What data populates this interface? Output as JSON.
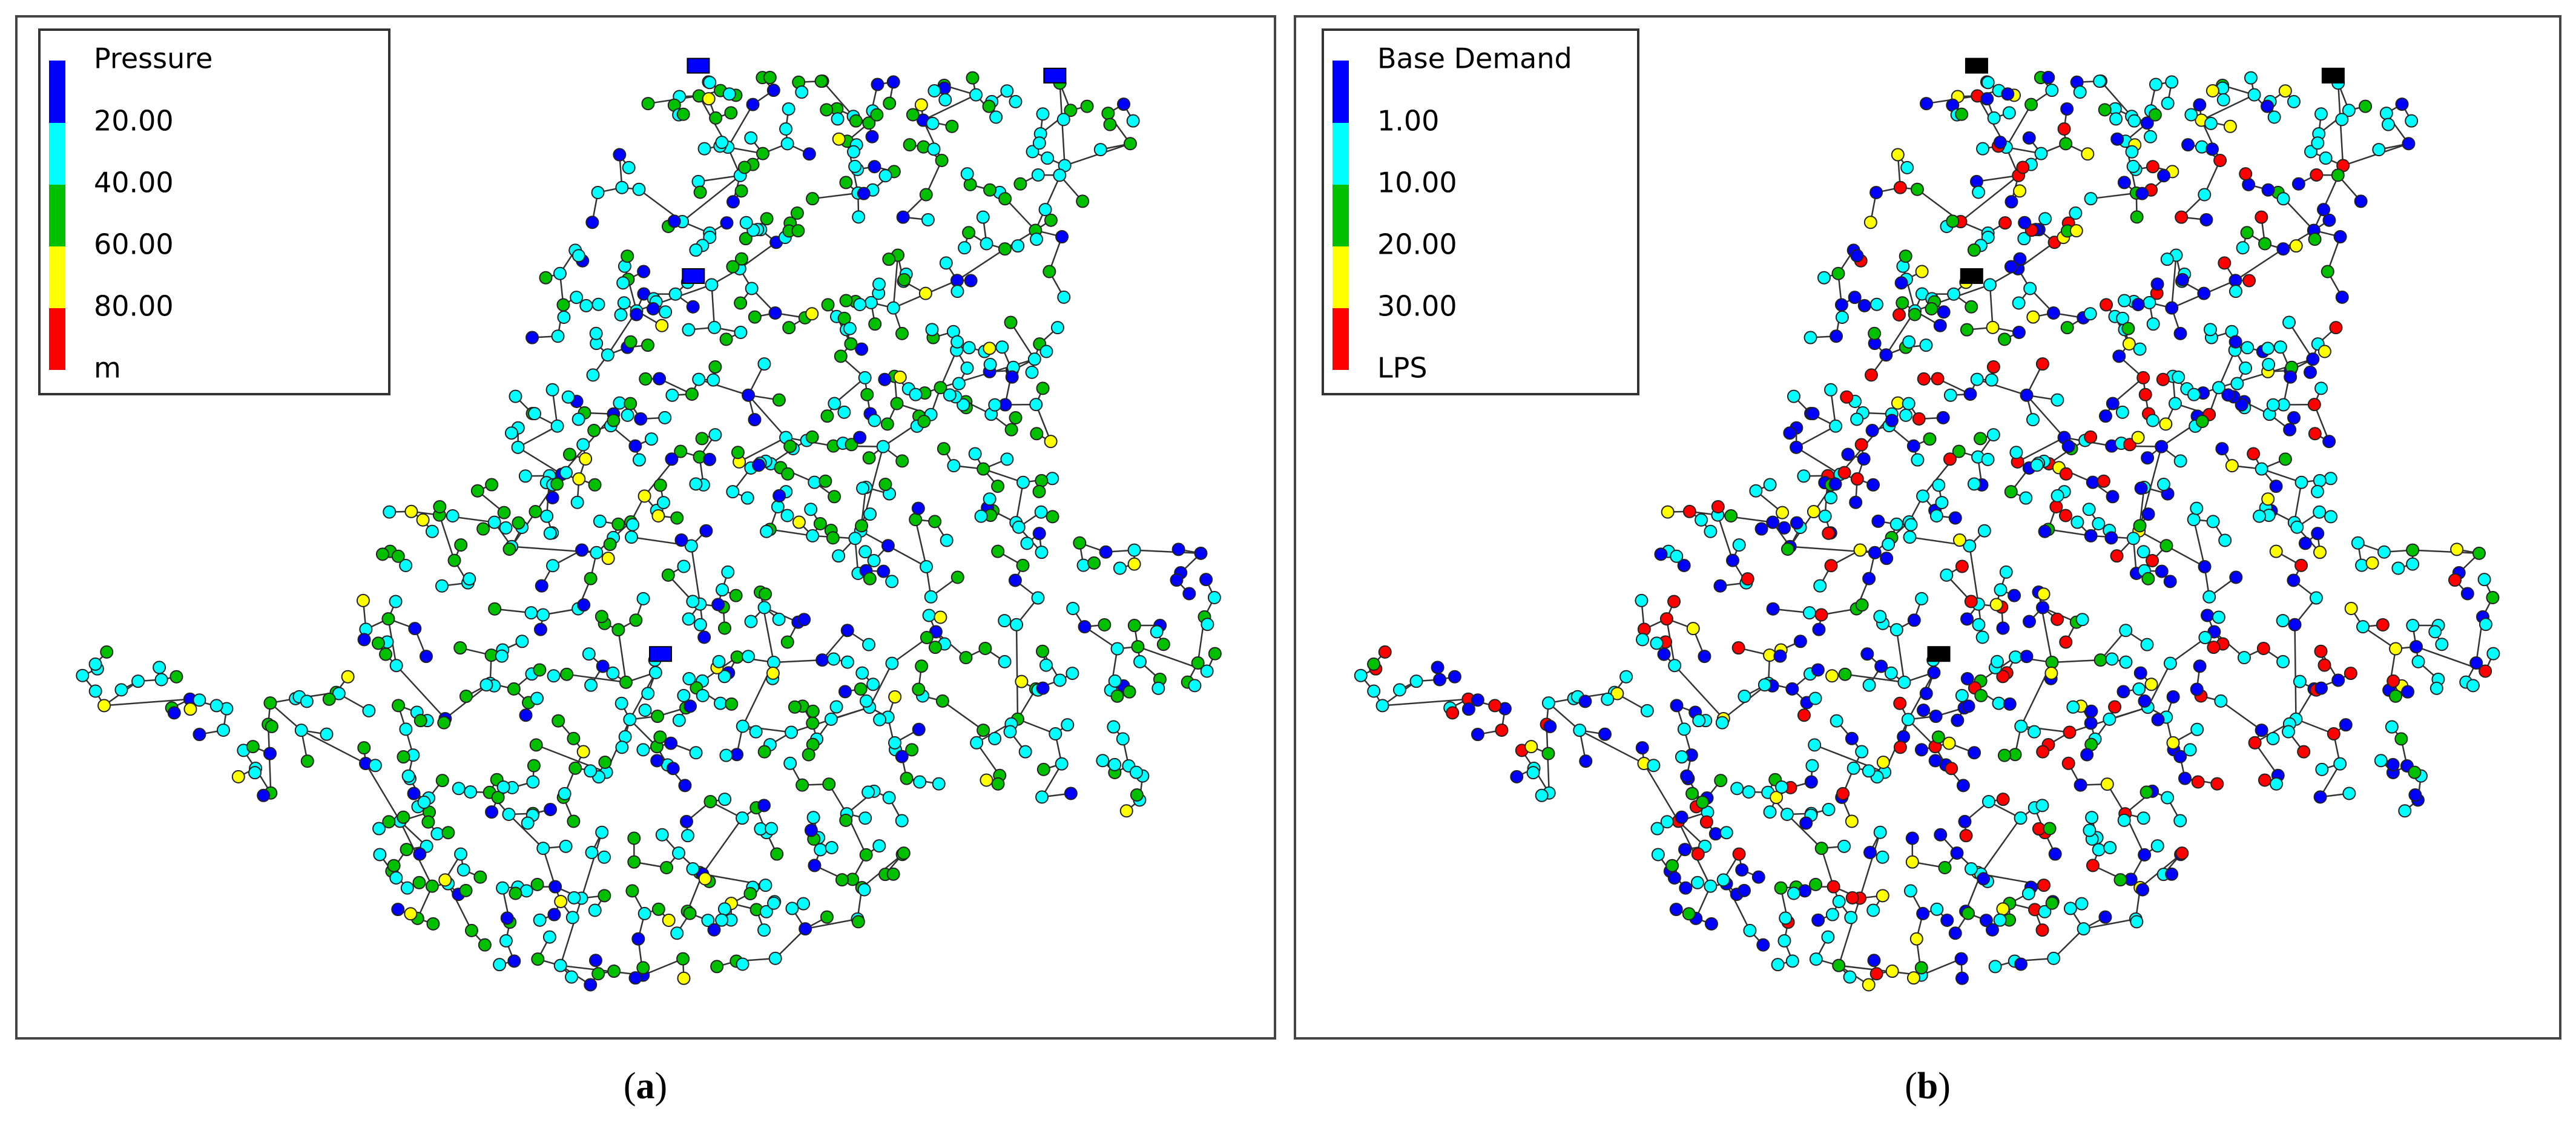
{
  "panels": [
    {
      "legend": {
        "title": "Pressure",
        "labels": [
          "20.00",
          "40.00",
          "60.00",
          "80.00",
          "m"
        ],
        "colors": [
          "#0000ff",
          "#00ffff",
          "#00c000",
          "#ffff00",
          "#ff0000"
        ]
      },
      "caption": [
        "(",
        "a",
        ")"
      ]
    },
    {
      "legend": {
        "title": "Base Demand",
        "labels": [
          "1.00",
          "10.00",
          "20.00",
          "30.00",
          "LPS"
        ],
        "colors": [
          "#0000ff",
          "#00ffff",
          "#00c000",
          "#ffff00",
          "#ff0000"
        ]
      },
      "caption": [
        "(",
        "b",
        ")"
      ]
    }
  ]
}
